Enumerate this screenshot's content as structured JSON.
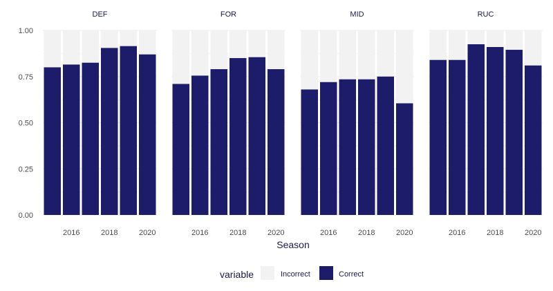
{
  "chart_data": {
    "type": "bar",
    "stacked": true,
    "facet_by": "position",
    "panels": [
      "DEF",
      "FOR",
      "MID",
      "RUC"
    ],
    "seasons": [
      2015,
      2016,
      2017,
      2018,
      2019,
      2020
    ],
    "series": [
      {
        "name": "Correct",
        "color": "#1c1c6b",
        "values": {
          "DEF": [
            0.8,
            0.815,
            0.825,
            0.905,
            0.915,
            0.87
          ],
          "FOR": [
            0.71,
            0.755,
            0.79,
            0.85,
            0.855,
            0.79
          ],
          "MID": [
            0.68,
            0.72,
            0.735,
            0.735,
            0.75,
            0.605
          ],
          "RUC": [
            0.84,
            0.84,
            0.925,
            0.91,
            0.895,
            0.81
          ]
        }
      },
      {
        "name": "Incorrect",
        "color": "#f2f2f2",
        "values": {
          "DEF": [
            0.2,
            0.185,
            0.175,
            0.095,
            0.085,
            0.13
          ],
          "FOR": [
            0.29,
            0.245,
            0.21,
            0.15,
            0.145,
            0.21
          ],
          "MID": [
            0.32,
            0.28,
            0.265,
            0.265,
            0.25,
            0.395
          ],
          "RUC": [
            0.16,
            0.16,
            0.075,
            0.09,
            0.105,
            0.19
          ]
        }
      }
    ],
    "x_ticks": [
      "2016",
      "2018",
      "2020"
    ],
    "y_ticks": [
      "0.00",
      "0.25",
      "0.50",
      "0.75",
      "1.00"
    ],
    "ylim": [
      0,
      1
    ],
    "xlabel": "Season",
    "ylabel": "",
    "legend": {
      "title": "variable",
      "position": "bottom",
      "items": [
        "Incorrect",
        "Correct"
      ]
    }
  }
}
